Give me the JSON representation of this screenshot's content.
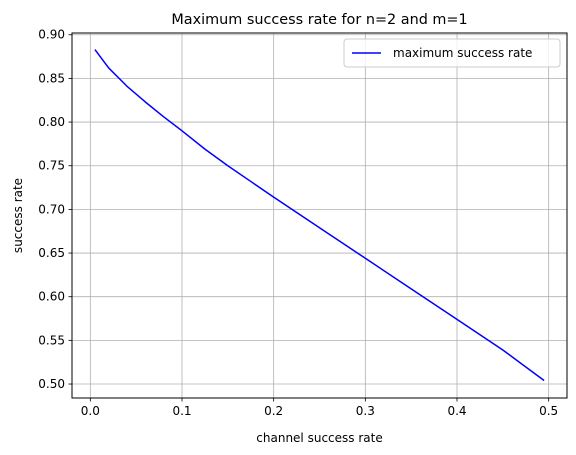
{
  "chart_data": {
    "type": "line",
    "title": "Maximum success rate for n=2 and m=1",
    "xlabel": "channel success rate",
    "ylabel": "success rate",
    "xlim": [
      -0.02,
      0.52
    ],
    "ylim": [
      0.484,
      0.902
    ],
    "x_ticks": [
      0.0,
      0.1,
      0.2,
      0.3,
      0.4,
      0.5
    ],
    "x_tick_labels": [
      "0.0",
      "0.1",
      "0.2",
      "0.3",
      "0.4",
      "0.5"
    ],
    "y_ticks": [
      0.5,
      0.55,
      0.6,
      0.65,
      0.7,
      0.75,
      0.8,
      0.85,
      0.9
    ],
    "y_tick_labels": [
      "0.50",
      "0.55",
      "0.60",
      "0.65",
      "0.70",
      "0.75",
      "0.80",
      "0.85",
      "0.90"
    ],
    "grid": true,
    "legend_position": "top-right",
    "series": [
      {
        "name": "maximum success rate",
        "color": "#0000ff",
        "x": [
          0.005,
          0.02,
          0.04,
          0.06,
          0.08,
          0.1,
          0.125,
          0.15,
          0.175,
          0.2,
          0.25,
          0.3,
          0.35,
          0.4,
          0.45,
          0.495
        ],
        "y": [
          0.883,
          0.862,
          0.841,
          0.823,
          0.806,
          0.79,
          0.769,
          0.75,
          0.732,
          0.714,
          0.679,
          0.644,
          0.609,
          0.574,
          0.539,
          0.504
        ]
      }
    ]
  }
}
